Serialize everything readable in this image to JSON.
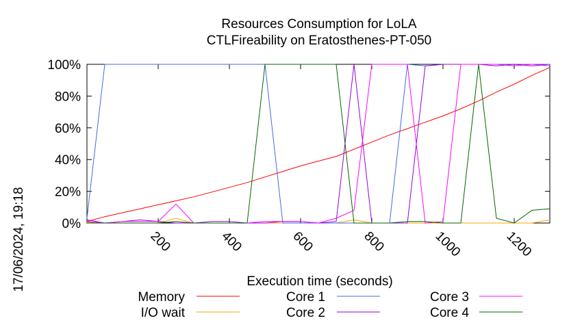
{
  "chart_data": {
    "type": "line",
    "title": [
      "Resources Consumption for LoLA",
      "CTLFireability on Eratosthenes-PT-050"
    ],
    "xlabel": "Execution time (seconds)",
    "ylabel": "",
    "timestamp": "17/06/2024, 19:18",
    "xlim": [
      0,
      1300
    ],
    "ylim": [
      0,
      100
    ],
    "x_ticks": [
      200,
      400,
      600,
      800,
      1000,
      1200
    ],
    "y_ticks": [
      0,
      20,
      40,
      60,
      80,
      100
    ],
    "y_tick_labels": [
      "0%",
      "20%",
      "40%",
      "60%",
      "80%",
      "100%"
    ],
    "grid": false,
    "legend_position": "bottom",
    "series": [
      {
        "name": "Memory",
        "color": "#ff0000",
        "x": [
          0,
          50,
          100,
          150,
          200,
          250,
          300,
          350,
          400,
          450,
          500,
          550,
          600,
          650,
          700,
          750,
          800,
          850,
          900,
          950,
          1000,
          1050,
          1100,
          1150,
          1200,
          1250,
          1300
        ],
        "y": [
          1,
          4,
          6.5,
          9,
          11.5,
          14,
          16.5,
          19.5,
          22.5,
          25.5,
          29,
          32.5,
          36,
          39,
          42,
          46.5,
          51,
          55.5,
          59.5,
          63.5,
          67.5,
          72,
          77,
          82.5,
          87.5,
          93,
          98
        ]
      },
      {
        "name": "I/O wait",
        "color": "#ffa500",
        "x": [
          0,
          50,
          100,
          150,
          200,
          250,
          300,
          350,
          400,
          450,
          500,
          550,
          600,
          650,
          700,
          750,
          800,
          850,
          900,
          950,
          1000,
          1050,
          1100,
          1150,
          1200,
          1250,
          1300
        ],
        "y": [
          0.5,
          0,
          0,
          0,
          0,
          3,
          0,
          0,
          0,
          0,
          0,
          0,
          0,
          0,
          0,
          2,
          0,
          0,
          0,
          0,
          0,
          0,
          0,
          0,
          0,
          0,
          2
        ]
      },
      {
        "name": "Core 1",
        "color": "#4169e1",
        "x": [
          0,
          50,
          100,
          150,
          200,
          250,
          300,
          350,
          400,
          450,
          500,
          550,
          600,
          650,
          700,
          750,
          800,
          850,
          900,
          950,
          1000,
          1050,
          1100,
          1150,
          1200,
          1250,
          1300
        ],
        "y": [
          3,
          100,
          100,
          100,
          100,
          100,
          100,
          100,
          100,
          100,
          100,
          0,
          0,
          0,
          0,
          0,
          0,
          0,
          100,
          99,
          100,
          100,
          100,
          100,
          100,
          100,
          99
        ]
      },
      {
        "name": "Core 2",
        "color": "#9400d3",
        "x": [
          0,
          50,
          100,
          150,
          200,
          250,
          300,
          350,
          400,
          450,
          500,
          550,
          600,
          650,
          700,
          750,
          800,
          850,
          900,
          950,
          1000,
          1050,
          1100,
          1150,
          1200,
          1250,
          1300
        ],
        "y": [
          2,
          0,
          1,
          2,
          1,
          0,
          0,
          1,
          1,
          0,
          0,
          1,
          1,
          0,
          1,
          100,
          0,
          0,
          0,
          99,
          100,
          100,
          100,
          99,
          100,
          99,
          100
        ]
      },
      {
        "name": "Core 3",
        "color": "#ff00ff",
        "x": [
          0,
          50,
          100,
          150,
          200,
          250,
          300,
          350,
          400,
          450,
          500,
          550,
          600,
          650,
          700,
          750,
          800,
          850,
          900,
          950,
          1000,
          1050,
          1100,
          1150,
          1200,
          1250,
          1300
        ],
        "y": [
          1,
          0,
          1,
          1,
          1,
          12,
          0,
          0,
          0,
          0,
          1,
          1,
          1,
          0,
          3,
          8,
          100,
          100,
          100,
          0,
          1,
          100,
          100,
          100,
          99,
          100,
          100
        ]
      },
      {
        "name": "Core 4",
        "color": "#006400",
        "x": [
          0,
          50,
          100,
          150,
          200,
          250,
          300,
          350,
          400,
          450,
          500,
          550,
          600,
          650,
          700,
          750,
          800,
          850,
          900,
          950,
          1000,
          1050,
          1100,
          1150,
          1200,
          1250,
          1300
        ],
        "y": [
          0,
          0,
          0,
          0,
          0,
          1,
          0,
          0,
          0,
          0,
          100,
          100,
          100,
          100,
          100,
          0,
          0,
          0,
          1,
          1,
          0,
          0,
          100,
          3,
          0,
          8,
          9
        ]
      }
    ]
  }
}
